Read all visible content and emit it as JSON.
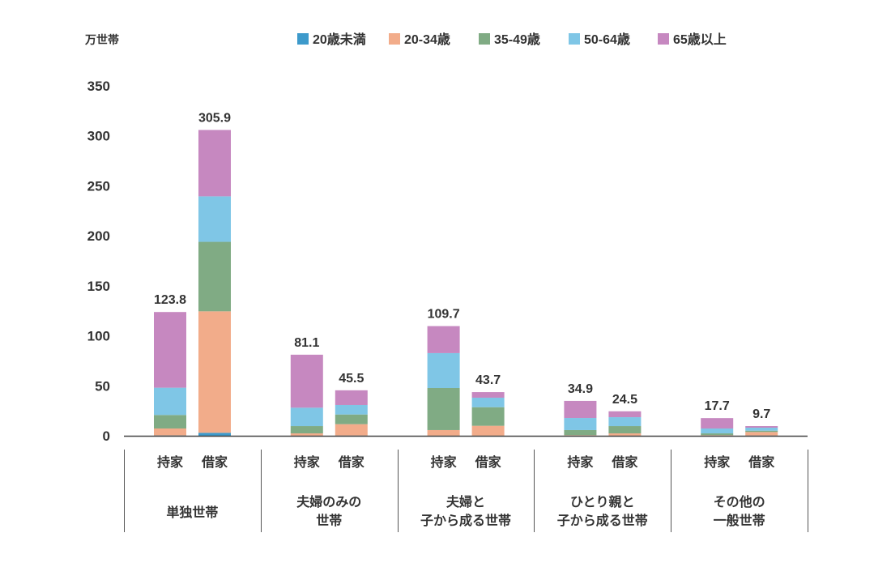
{
  "chart_data": {
    "type": "bar",
    "stacked": true,
    "unit_label": "万世帯",
    "ylim": [
      0,
      350
    ],
    "yticks": [
      0,
      50,
      100,
      150,
      200,
      250,
      300,
      350
    ],
    "legend_position": "top",
    "series": [
      {
        "name": "20歳未満",
        "color": "#3d9acb",
        "values": [
          0.3,
          3.0,
          0.1,
          0.2,
          0.1,
          0.1,
          0.1,
          0.1,
          0.1,
          0.2
        ]
      },
      {
        "name": "20-34歳",
        "color": "#f2ac8a",
        "values": [
          7.0,
          121.5,
          2.3,
          11.4,
          5.6,
          9.9,
          0.5,
          2.3,
          0.5,
          3.6
        ]
      },
      {
        "name": "35-49歳",
        "color": "#80ab84",
        "values": [
          13.5,
          69.5,
          7.3,
          9.7,
          42.1,
          18.6,
          5.1,
          7.3,
          1.8,
          1.3
        ]
      },
      {
        "name": "50-64歳",
        "color": "#7fc6e6",
        "values": [
          27.3,
          45.5,
          18.4,
          9.5,
          34.9,
          9.5,
          12.1,
          8.9,
          4.9,
          3.0
        ]
      },
      {
        "name": "65歳以上",
        "color": "#c688c0",
        "values": [
          75.7,
          66.4,
          53.0,
          14.7,
          27.0,
          5.6,
          17.1,
          5.9,
          10.4,
          1.6
        ]
      }
    ],
    "totals": [
      "123.8",
      "305.9",
      "81.1",
      "45.5",
      "109.7",
      "43.7",
      "34.9",
      "24.5",
      "17.7",
      "9.7"
    ],
    "bar_labels": [
      "持家",
      "借家",
      "持家",
      "借家",
      "持家",
      "借家",
      "持家",
      "借家",
      "持家",
      "借家"
    ],
    "groups": [
      [
        "単独世帯"
      ],
      [
        "夫婦のみの",
        "世帯"
      ],
      [
        "夫婦と",
        "子から成る世帯"
      ],
      [
        "ひとり親と",
        "子から成る世帯"
      ],
      [
        "その他の",
        "一般世帯"
      ]
    ]
  }
}
